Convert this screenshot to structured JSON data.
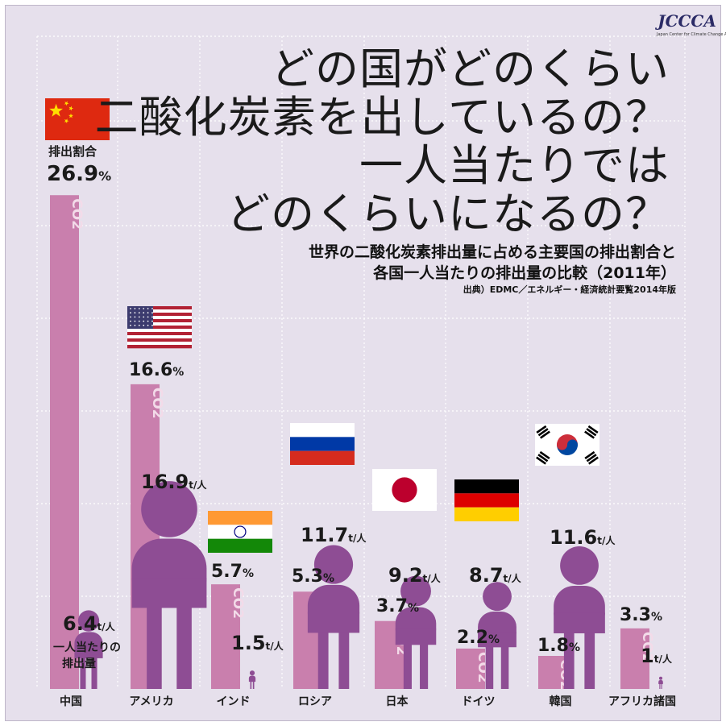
{
  "title_lines": [
    "どの国がどのくらい",
    "二酸化炭素を出しているの？",
    "一人当たりでは",
    "どのくらいになるの？"
  ],
  "subtitle_lines": [
    "世界の二酸化炭素排出量に占める主要国の排出割合と",
    "各国一人当たりの排出量の比較（2011年）"
  ],
  "source": "出典）EDMC／エネルギー・経済統計要覧2014年版",
  "logo": {
    "name": "JCCCA",
    "tagline": "Japan Center for Climate Change Actions"
  },
  "labels": {
    "share_caption": "排出割合",
    "per_capita_caption_lines": [
      "一人当たりの",
      "排出量"
    ],
    "bar_text": "CO2",
    "per_capita_unit": "t/人"
  },
  "colors": {
    "background": "#e6e0ec",
    "bar": "#c97fad",
    "person": "#8e4d94",
    "gridline": "#ffffff",
    "text": "#1a1a1a"
  },
  "chart_data": {
    "type": "bar",
    "categories": [
      "中国",
      "アメリカ",
      "インド",
      "ロシア",
      "日本",
      "ドイツ",
      "韓国",
      "アフリカ諸国"
    ],
    "series": [
      {
        "name": "排出割合",
        "unit": "%",
        "values": [
          26.9,
          16.6,
          5.7,
          5.3,
          3.7,
          2.2,
          1.8,
          3.3
        ]
      },
      {
        "name": "一人当たりの排出量",
        "unit": "t/人",
        "values": [
          6.4,
          16.9,
          1.5,
          11.7,
          9.2,
          8.7,
          11.6,
          1.0
        ]
      }
    ],
    "flags": [
      "china-flag",
      "usa-flag",
      "india-flag",
      "russia-flag",
      "japan-flag",
      "germany-flag",
      "korea-flag",
      null
    ],
    "grid": true
  }
}
